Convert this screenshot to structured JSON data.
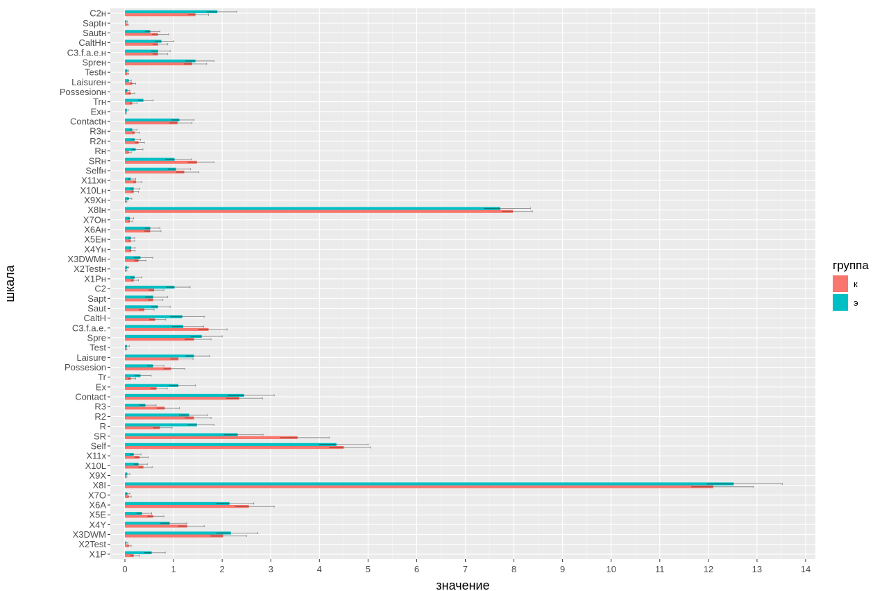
{
  "chart_data": {
    "type": "bar",
    "orientation": "horizontal",
    "xlabel": "значение",
    "ylabel": "шкала",
    "xlim": [
      -0.3,
      14.2
    ],
    "x_ticks": [
      0,
      1,
      2,
      3,
      4,
      5,
      6,
      7,
      8,
      9,
      10,
      11,
      12,
      13,
      14
    ],
    "grid": true,
    "legend": {
      "title": "группа",
      "position": "right",
      "entries": [
        {
          "label": "к",
          "color": "#F8766D"
        },
        {
          "label": "э",
          "color": "#00BFC4"
        }
      ]
    },
    "categories": [
      "C2н",
      "Saptн",
      "Sautн",
      "CaltHн",
      "C3.f.a.e.н",
      "Spreн",
      "Testн",
      "Laisureн",
      "Possesionн",
      "Trн",
      "Exн",
      "Contactн",
      "R3н",
      "R2н",
      "Rн",
      "SRн",
      "Selfн",
      "X11xн",
      "X10Lн",
      "X9Xн",
      "X8Iн",
      "X7Oн",
      "X6Aн",
      "X5Eн",
      "X4Yн",
      "X3DWMн",
      "X2Testн",
      "X1Pн",
      "C2",
      "Sapt",
      "Saut",
      "CaltH",
      "C3.f.a.e.",
      "Spre",
      "Test",
      "Laisure",
      "Possesion",
      "Tr",
      "Ex",
      "Contact",
      "R3",
      "R2",
      "R",
      "SR",
      "Self",
      "X11x",
      "X10L",
      "X9X",
      "X8I",
      "X7O",
      "X6A",
      "X5E",
      "X4Y",
      "X3DWM",
      "X2Test",
      "X1P"
    ],
    "series": [
      {
        "name": "к",
        "color": "#F8766D",
        "values": [
          1.45,
          0.05,
          0.68,
          0.68,
          0.68,
          1.38,
          0.05,
          0.15,
          0.12,
          0.15,
          0.02,
          1.08,
          0.2,
          0.28,
          0.08,
          1.48,
          1.22,
          0.23,
          0.18,
          0.02,
          7.98,
          0.1,
          0.52,
          0.12,
          0.13,
          0.28,
          0.02,
          0.18,
          0.6,
          0.58,
          0.4,
          0.62,
          1.72,
          1.42,
          0.02,
          1.1,
          0.95,
          0.12,
          0.65,
          2.35,
          0.82,
          1.42,
          0.72,
          3.55,
          4.5,
          0.3,
          0.38,
          0.02,
          12.1,
          0.08,
          2.55,
          0.58,
          1.28,
          2.02,
          0.08,
          0.18
        ],
        "errors": [
          0.27,
          0.02,
          0.22,
          0.2,
          0.2,
          0.3,
          0.03,
          0.07,
          0.08,
          0.1,
          0.01,
          0.3,
          0.1,
          0.12,
          0.05,
          0.35,
          0.3,
          0.12,
          0.1,
          0.02,
          0.4,
          0.05,
          0.22,
          0.08,
          0.08,
          0.15,
          0.02,
          0.1,
          0.2,
          0.2,
          0.2,
          0.22,
          0.38,
          0.35,
          0.02,
          0.3,
          0.28,
          0.1,
          0.22,
          0.48,
          0.3,
          0.35,
          0.25,
          0.65,
          0.55,
          0.18,
          0.18,
          0.02,
          0.82,
          0.05,
          0.52,
          0.22,
          0.35,
          0.48,
          0.05,
          0.12
        ]
      },
      {
        "name": "э",
        "color": "#00BFC4",
        "values": [
          1.9,
          0.03,
          0.52,
          0.75,
          0.68,
          1.45,
          0.05,
          0.08,
          0.05,
          0.38,
          0.04,
          1.12,
          0.15,
          0.2,
          0.22,
          1.02,
          1.05,
          0.12,
          0.18,
          0.08,
          7.72,
          0.1,
          0.52,
          0.12,
          0.13,
          0.32,
          0.05,
          0.2,
          1.02,
          0.58,
          0.68,
          1.18,
          1.2,
          1.58,
          0.04,
          1.42,
          0.58,
          0.32,
          1.1,
          2.45,
          0.42,
          1.32,
          1.48,
          2.32,
          4.35,
          0.18,
          0.28,
          0.05,
          12.52,
          0.05,
          2.15,
          0.35,
          0.92,
          2.18,
          0.03,
          0.55
        ],
        "errors": [
          0.4,
          0.02,
          0.2,
          0.25,
          0.25,
          0.38,
          0.03,
          0.05,
          0.05,
          0.2,
          0.03,
          0.3,
          0.1,
          0.12,
          0.15,
          0.35,
          0.3,
          0.1,
          0.12,
          0.06,
          0.62,
          0.08,
          0.2,
          0.08,
          0.08,
          0.25,
          0.03,
          0.15,
          0.32,
          0.3,
          0.25,
          0.45,
          0.42,
          0.42,
          0.05,
          0.32,
          0.22,
          0.22,
          0.35,
          0.62,
          0.22,
          0.38,
          0.35,
          0.52,
          0.65,
          0.15,
          0.18,
          0.05,
          1.0,
          0.05,
          0.5,
          0.2,
          0.35,
          0.55,
          0.03,
          0.28
        ]
      }
    ]
  }
}
